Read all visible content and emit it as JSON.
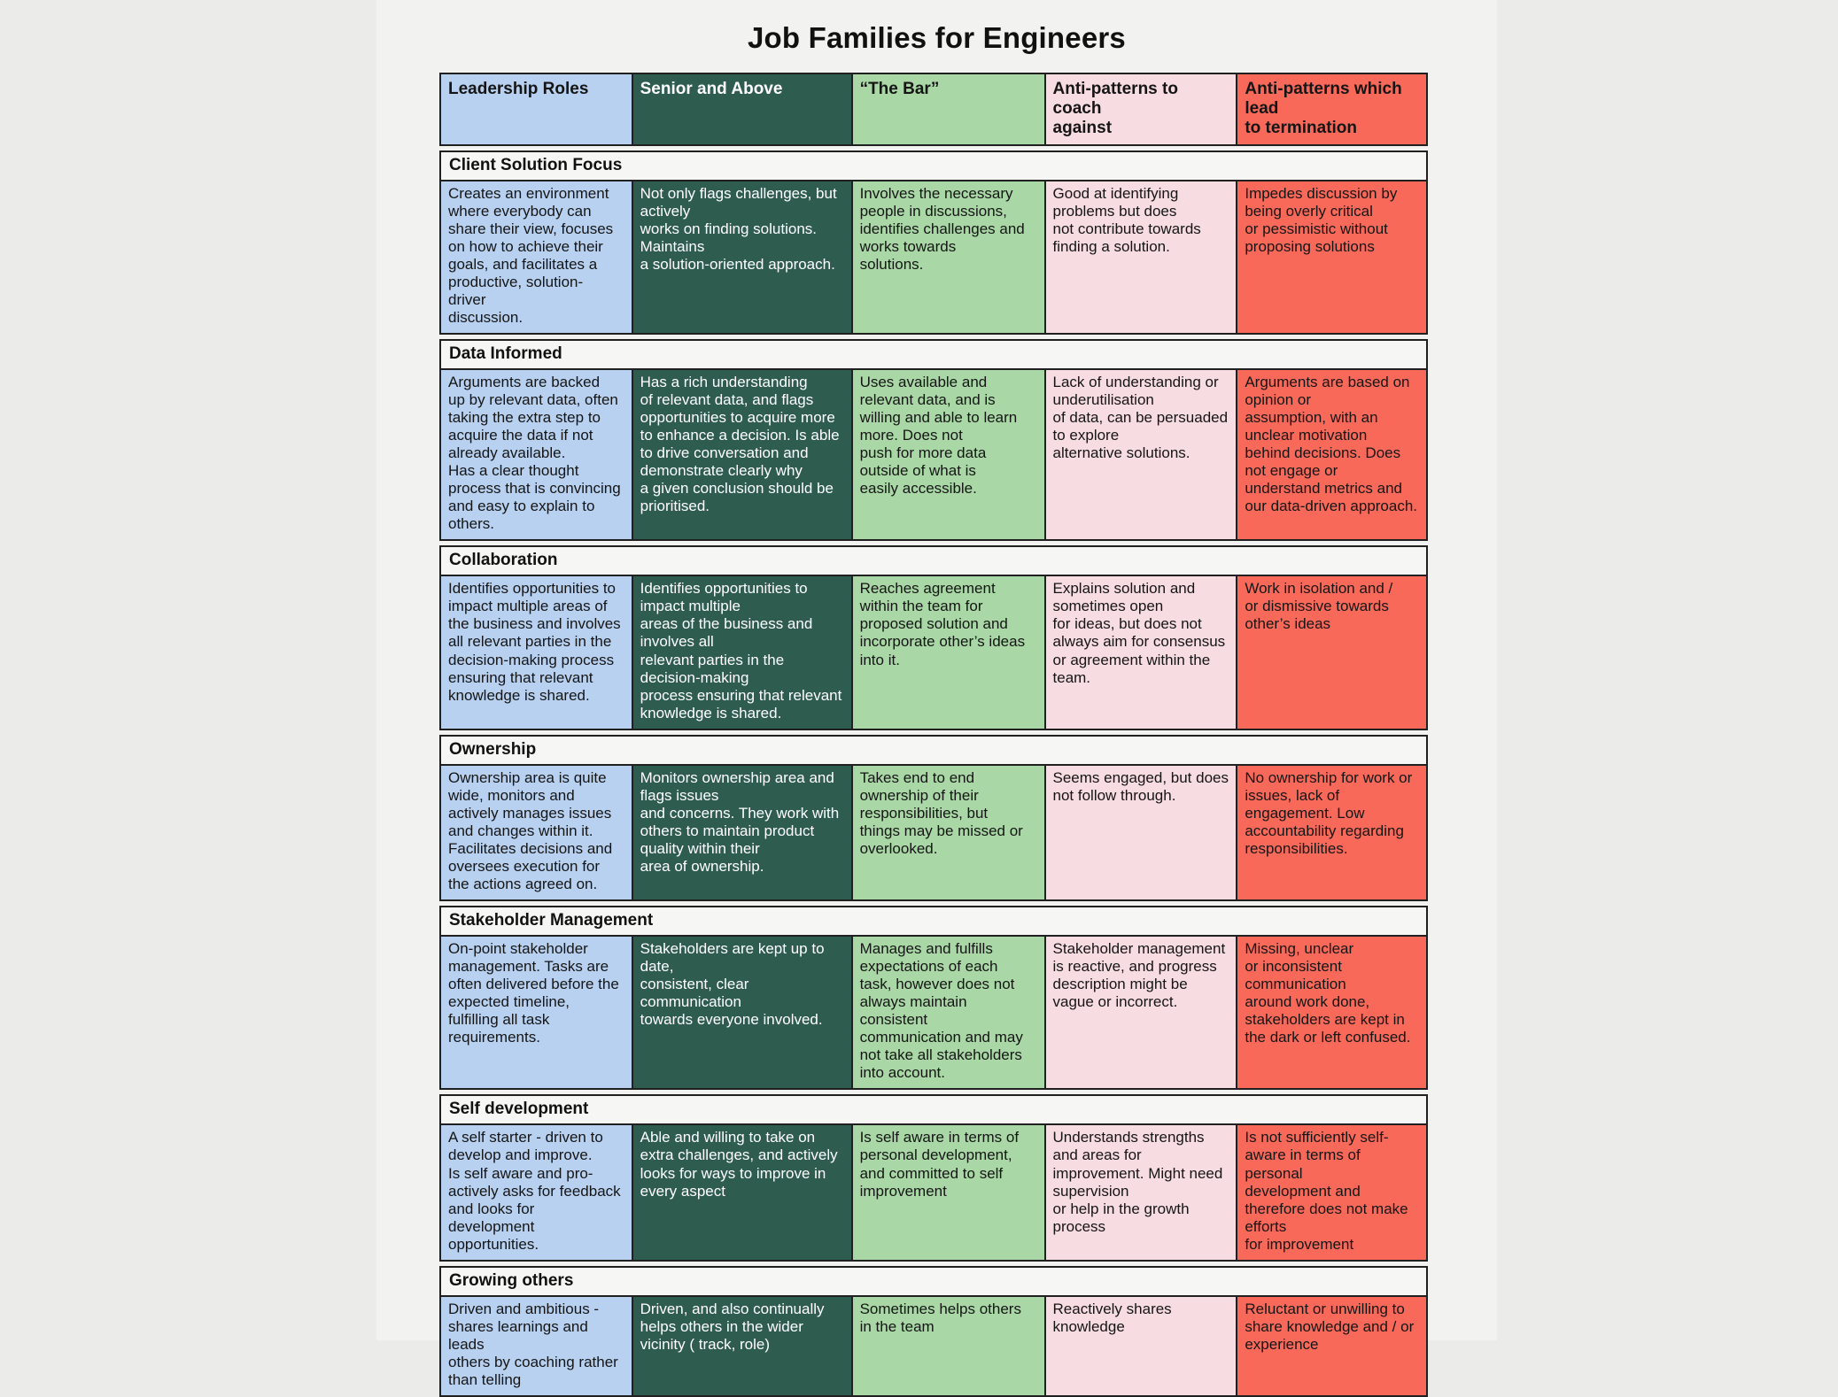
{
  "page_title": "Job Families for Engineers",
  "colors": {
    "col_leadership": "#b8d1f0",
    "col_senior": "#2e5c4f",
    "col_bar": "#a9d8a6",
    "col_coach": "#f7dce2",
    "col_termination": "#f8695a",
    "col_section": "#f6f6f4",
    "border": "#202020"
  },
  "table": {
    "columns": [
      {
        "key": "leadership",
        "label": "Leadership Roles"
      },
      {
        "key": "senior",
        "label": "Senior and Above"
      },
      {
        "key": "bar",
        "label": "“The Bar”"
      },
      {
        "key": "coach",
        "label": "Anti-patterns to coach\nagainst"
      },
      {
        "key": "termination",
        "label": "Anti-patterns which lead\nto termination"
      }
    ],
    "sections": [
      {
        "title": "Client Solution Focus",
        "cells": {
          "leadership": "Creates an environment\nwhere everybody can\nshare their view, focuses\non how to achieve their\ngoals, and facilitates a\nproductive, solution-\ndriver\ndiscussion.",
          "senior": "Not only flags challenges, but\nactively\nworks on finding solutions.\nMaintains\na solution-oriented approach.",
          "bar": "Involves the necessary\npeople in discussions,\nidentifies challenges and\nworks towards\nsolutions.",
          "coach": "Good at identifying\nproblems but does\nnot contribute towards\nfinding a solution.",
          "termination": "Impedes discussion by\nbeing overly critical\nor pessimistic without\nproposing solutions"
        }
      },
      {
        "title": "Data Informed",
        "cells": {
          "leadership": "Arguments are backed\nup by relevant data, often\ntaking the extra step to\nacquire the data if not\nalready available.\nHas a clear thought\nprocess that is convincing\nand easy to explain to\nothers.",
          "senior": "Has a rich understanding\nof relevant data, and flags\nopportunities to acquire more\nto enhance a decision. Is able\nto drive conversation and\ndemonstrate clearly why\na given conclusion should be\nprioritised.",
          "bar": "Uses available and\nrelevant data, and is\nwilling and able to learn\nmore. Does not\npush for more data\noutside of what is\neasily accessible.",
          "coach": "Lack of understanding or\nunderutilisation\nof data, can be persuaded\nto explore\nalternative solutions.",
          "termination": "Arguments are based on\nopinion or\nassumption, with an\nunclear motivation\nbehind decisions. Does\nnot engage or\nunderstand metrics and\nour data-driven approach."
        }
      },
      {
        "title": "Collaboration",
        "cells": {
          "leadership": "Identifies opportunities to\nimpact multiple areas of\nthe business and involves\nall relevant parties in the\ndecision-making process\nensuring that relevant\nknowledge is shared.",
          "senior": "Identifies opportunities to\nimpact multiple\nareas of the business and\ninvolves all\nrelevant parties in the\ndecision-making\nprocess ensuring that relevant\nknowledge is shared.",
          "bar": "Reaches agreement\nwithin the team for\nproposed solution and\nincorporate other’s ideas\ninto it.",
          "coach": "Explains solution and\nsometimes open\nfor ideas, but does not\nalways aim for consensus\nor agreement within the\nteam.",
          "termination": "Work in isolation and /\nor dismissive towards\nother’s ideas"
        }
      },
      {
        "title": "Ownership",
        "cells": {
          "leadership": "Ownership area is quite\nwide, monitors and\nactively manages issues\nand changes within it.\nFacilitates decisions and\noversees execution for\nthe actions agreed on.",
          "senior": "Monitors ownership area and\nflags issues\nand concerns. They work with\nothers to maintain product\nquality within their\narea of ownership.",
          "bar": "Takes end to end\nownership of their\nresponsibilities, but\nthings may be missed or\noverlooked.",
          "coach": "Seems engaged, but does\nnot follow through.",
          "termination": "No ownership for work or\nissues, lack of\nengagement. Low\naccountability regarding\nresponsibilities."
        }
      },
      {
        "title": "Stakeholder Management",
        "cells": {
          "leadership": "On-point stakeholder\nmanagement. Tasks are\noften delivered before the\nexpected timeline,\nfulfilling all task\nrequirements.",
          "senior": "Stakeholders are kept up to\ndate,\nconsistent, clear\ncommunication\ntowards everyone involved.",
          "bar": "Manages and fulfills\nexpectations of each\ntask, however does not\nalways maintain\nconsistent\ncommunication and may\nnot take all stakeholders\ninto account.",
          "coach": "Stakeholder management\nis reactive, and progress\ndescription might be\nvague or incorrect.",
          "termination": "Missing, unclear\nor inconsistent\ncommunication\naround work done,\nstakeholders are kept in\nthe dark or left confused."
        }
      },
      {
        "title": "Self development",
        "cells": {
          "leadership": "A self starter - driven to\ndevelop and improve.\nIs self aware and pro-\nactively asks for feedback\nand looks for\ndevelopment\nopportunities.",
          "senior": "Able and willing to take on\nextra challenges, and actively\nlooks for ways to improve in\nevery aspect",
          "bar": "Is self aware in terms of\npersonal development,\nand committed to self\nimprovement",
          "coach": "Understands strengths\nand areas for\nimprovement. Might need\nsupervision\nor help in the growth\nprocess",
          "termination": "Is not sufficiently self-\naware in terms of\npersonal\ndevelopment and\ntherefore does not make\nefforts\nfor improvement"
        }
      },
      {
        "title": "Growing others",
        "cells": {
          "leadership": "Driven and ambitious -\nshares learnings and leads\nothers by coaching rather\nthan telling",
          "senior": "Driven, and also continually\nhelps others in the wider\nvicinity ( track, role)",
          "bar": "Sometimes helps others\nin the team",
          "coach": "Reactively shares\nknowledge",
          "termination": "Reluctant or unwilling to\nshare knowledge and / or\nexperience"
        }
      }
    ]
  }
}
